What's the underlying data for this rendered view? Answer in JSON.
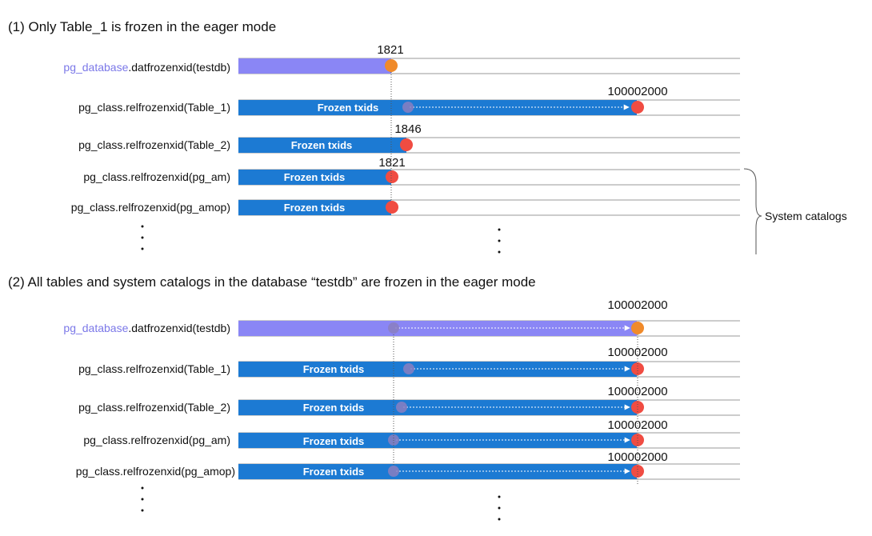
{
  "colors": {
    "bar_blue": "#1c7ad3",
    "bar_purple": "#8a86f5",
    "marker_red": "#f04c42",
    "marker_orange": "#f08a2a",
    "marker_faded": "#8a7fc0",
    "line_gray": "#9a9a9a",
    "label_purple": "#7b78e8",
    "text_dark": "#111111"
  },
  "panels": [
    {
      "id": "panel1",
      "title": "(1) Only Table_1 is frozen in the eager mode",
      "rows": [
        {
          "id": "p1-db",
          "label_prefix": "pg_database",
          "label_suffix": ".datfrozenxid(testdb)",
          "bar_color": "purple",
          "bar_text": "",
          "value_label": "1821",
          "marker": "orange",
          "old_marker": false,
          "arrow": false
        },
        {
          "id": "p1-table1",
          "label_prefix": "",
          "label_suffix": "pg_class.relfrozenxid(Table_1)",
          "bar_color": "blue",
          "bar_text": "Frozen txids",
          "value_label": "100002000",
          "marker": "red",
          "old_marker": true,
          "arrow": true
        },
        {
          "id": "p1-table2",
          "label_prefix": "",
          "label_suffix": "pg_class.relfrozenxid(Table_2)",
          "bar_color": "blue",
          "bar_text": "Frozen txids",
          "value_label": "1846",
          "marker": "red",
          "old_marker": false,
          "arrow": false
        },
        {
          "id": "p1-pgam",
          "label_prefix": "",
          "label_suffix": "pg_class.relfrozenxid(pg_am)",
          "bar_color": "blue",
          "bar_text": "Frozen txids",
          "value_label": "1821",
          "marker": "red",
          "old_marker": false,
          "arrow": false
        },
        {
          "id": "p1-pgamop",
          "label_prefix": "",
          "label_suffix": "pg_class.relfrozenxid(pg_amop)",
          "bar_color": "blue",
          "bar_text": "Frozen txids",
          "value_label": "",
          "marker": "red",
          "old_marker": false,
          "arrow": false
        }
      ],
      "brace_label": "System catalogs"
    },
    {
      "id": "panel2",
      "title": "(2) All tables and system catalogs in the database “testdb” are frozen in the eager mode",
      "rows": [
        {
          "id": "p2-db",
          "label_prefix": "pg_database",
          "label_suffix": ".datfrozenxid(testdb)",
          "bar_color": "purple",
          "bar_text": "",
          "value_label": "100002000",
          "marker": "orange",
          "old_marker": true,
          "arrow": true
        },
        {
          "id": "p2-table1",
          "label_prefix": "",
          "label_suffix": "pg_class.relfrozenxid(Table_1)",
          "bar_color": "blue",
          "bar_text": "Frozen txids",
          "value_label": "100002000",
          "marker": "red",
          "old_marker": true,
          "arrow": true
        },
        {
          "id": "p2-table2",
          "label_prefix": "",
          "label_suffix": "pg_class.relfrozenxid(Table_2)",
          "bar_color": "blue",
          "bar_text": "Frozen txids",
          "value_label": "100002000",
          "marker": "red",
          "old_marker": true,
          "arrow": true
        },
        {
          "id": "p2-pgam",
          "label_prefix": "",
          "label_suffix": "pg_class.relfrozenxid(pg_am)",
          "bar_color": "blue",
          "bar_text": "Frozen txids",
          "value_label": "100002000",
          "marker": "red",
          "old_marker": true,
          "arrow": true
        },
        {
          "id": "p2-pgamop",
          "label_prefix": "",
          "label_suffix": "pg_class.relfrozenxid(pg_amop)",
          "bar_color": "blue",
          "bar_text": "Frozen txids",
          "value_label": "100002000",
          "marker": "red",
          "old_marker": true,
          "arrow": true
        }
      ]
    }
  ]
}
